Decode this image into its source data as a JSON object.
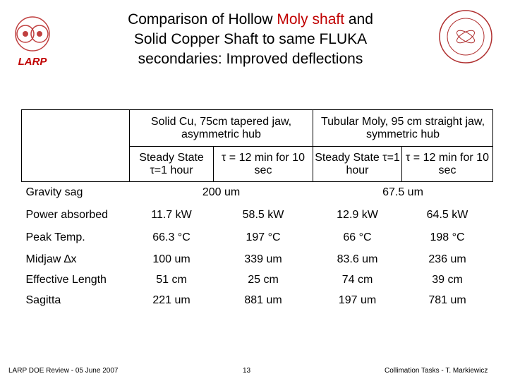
{
  "header": {
    "title_parts": [
      "Comparison of Hollow ",
      "Moly shaft",
      " and",
      "Solid Copper Shaft to same FLUKA",
      "secondaries: Improved deflections"
    ],
    "logo_left": "LARP"
  },
  "table": {
    "groups": [
      "Solid Cu, 75cm tapered jaw, asymmetric hub",
      "Tubular Moly, 95 cm straight jaw, symmetric hub"
    ],
    "subheaders": [
      "Steady State τ=1 hour",
      "τ = 12 min for 10 sec",
      "Steady State τ=1 hour",
      "τ = 12 min for 10 sec"
    ],
    "rows": [
      [
        "Gravity sag",
        "200 um",
        "67.5 um"
      ],
      [
        "Power absorbed",
        "11.7 kW",
        "58.5 kW",
        "12.9 kW",
        "64.5 kW"
      ],
      [
        "Peak Temp.",
        "66.3 °C",
        "197 °C",
        "66 °C",
        "198 °C"
      ],
      [
        "Midjaw ∆x",
        "100 um",
        "339 um",
        "83.6 um",
        "236 um"
      ],
      [
        "Effective Length",
        "51 cm",
        "25 cm",
        "74 cm",
        "39 cm"
      ],
      [
        "Sagitta",
        "221 um",
        "881 um",
        "197 um",
        "781 um"
      ]
    ]
  },
  "footer": {
    "left": "LARP DOE Review - 05 June 2007",
    "center": "13",
    "right": "Collimation Tasks - T. Markiewicz"
  }
}
